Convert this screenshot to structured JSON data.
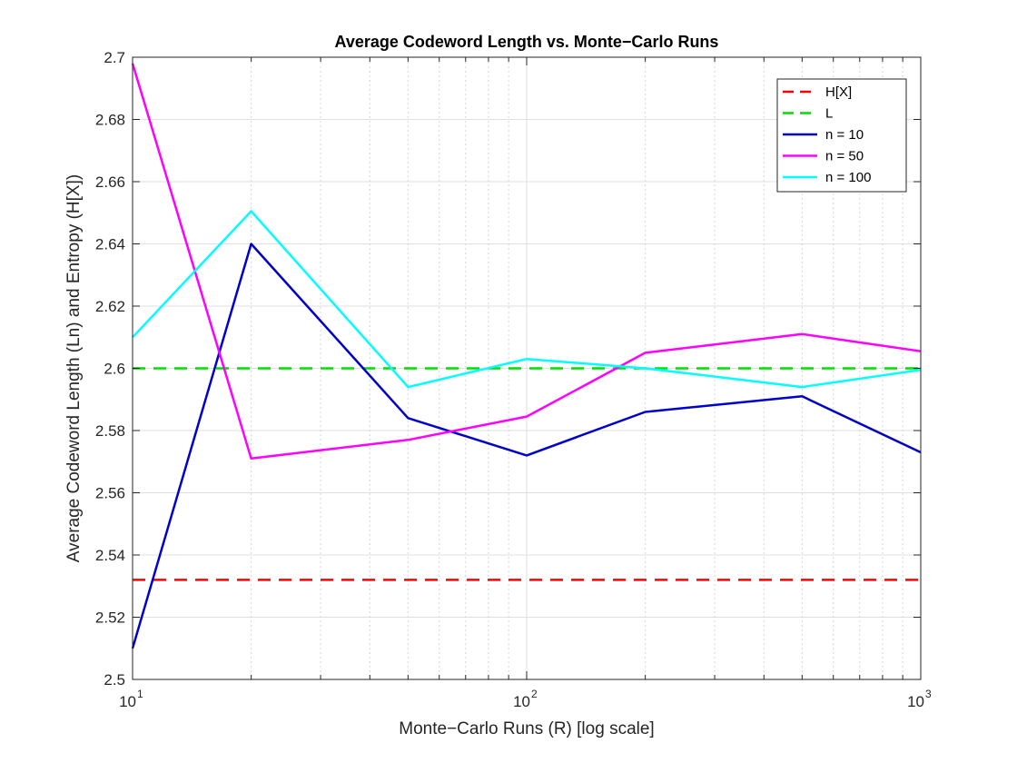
{
  "chart_data": {
    "type": "line",
    "title": "Average Codeword Length vs. Monte−Carlo Runs",
    "xlabel": "Monte−Carlo Runs (R) [log scale]",
    "ylabel": "Average Codeword Length (Ln) and Entropy (H[X])",
    "xscale": "log",
    "xlim": [
      10,
      1000
    ],
    "ylim": [
      2.5,
      2.7
    ],
    "yticks": [
      2.5,
      2.52,
      2.54,
      2.56,
      2.58,
      2.6,
      2.62,
      2.64,
      2.66,
      2.68,
      2.7
    ],
    "yticklabels": [
      "2.5",
      "2.52",
      "2.54",
      "2.56",
      "2.58",
      "2.6",
      "2.62",
      "2.64",
      "2.66",
      "2.68",
      "2.7"
    ],
    "xticks": [
      {
        "value": 10,
        "base": "10",
        "exp": "1"
      },
      {
        "value": 100,
        "base": "10",
        "exp": "2"
      },
      {
        "value": 1000,
        "base": "10",
        "exp": "3"
      }
    ],
    "grid": true,
    "legend_position": "top-right",
    "series": [
      {
        "name": "H[X]",
        "color": "#ff0000",
        "style": "dashed",
        "x": [
          10,
          1000
        ],
        "y": [
          2.532,
          2.532
        ]
      },
      {
        "name": "L",
        "color": "#00dd00",
        "style": "dashed",
        "x": [
          10,
          1000
        ],
        "y": [
          2.6,
          2.6
        ]
      },
      {
        "name": "n = 10",
        "color": "#0000cc",
        "style": "solid",
        "x": [
          10,
          20,
          50,
          100,
          200,
          500,
          1000
        ],
        "y": [
          2.51,
          2.64,
          2.584,
          2.572,
          2.586,
          2.591,
          2.573
        ]
      },
      {
        "name": "n = 50",
        "color": "#ff00ff",
        "style": "solid",
        "x": [
          10,
          20,
          50,
          100,
          200,
          500,
          1000
        ],
        "y": [
          2.698,
          2.571,
          2.577,
          2.5845,
          2.605,
          2.611,
          2.6055
        ]
      },
      {
        "name": "n = 100",
        "color": "#00ffff",
        "style": "solid",
        "x": [
          10,
          20,
          50,
          100,
          200,
          500,
          1000
        ],
        "y": [
          2.61,
          2.6505,
          2.594,
          2.603,
          2.6,
          2.594,
          2.5995
        ]
      }
    ]
  }
}
